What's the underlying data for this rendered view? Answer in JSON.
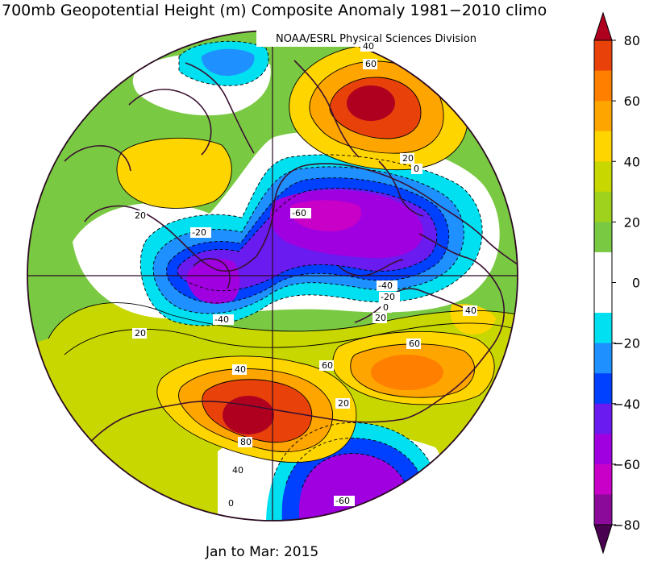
{
  "title": "700mb Geopotential Height (m) Composite Anomaly 1981−2010 climo",
  "credit": "NOAA/ESRL Physical Sciences Division",
  "period": "Jan to Mar: 2015",
  "colorbar": {
    "ticks": [
      "80",
      "60",
      "40",
      "20",
      "0",
      "−20",
      "−40",
      "−60",
      "−80"
    ],
    "bins": [
      {
        "range": "> 80",
        "color": "#b00020"
      },
      {
        "range": "70 to 80",
        "color": "#e8420a"
      },
      {
        "range": "60 to 70",
        "color": "#ff7f00"
      },
      {
        "range": "50 to 60",
        "color": "#ffa500"
      },
      {
        "range": "40 to 50",
        "color": "#ffd500"
      },
      {
        "range": "30 to 40",
        "color": "#c9d700"
      },
      {
        "range": "20 to 30",
        "color": "#9fd21c"
      },
      {
        "range": "10 to 20",
        "color": "#7ac943"
      },
      {
        "range": "0 to 10",
        "color": "#ffffff"
      },
      {
        "range": "-10 to 0",
        "color": "#ffffff"
      },
      {
        "range": "-20 to -10",
        "color": "#00e0f0"
      },
      {
        "range": "-30 to -20",
        "color": "#1e90ff"
      },
      {
        "range": "-40 to -30",
        "color": "#0040ff"
      },
      {
        "range": "-50 to -40",
        "color": "#6a1cf0"
      },
      {
        "range": "-60 to -50",
        "color": "#a000e0"
      },
      {
        "range": "-70 to -60",
        "color": "#c800c8"
      },
      {
        "range": "-80 to -70",
        "color": "#8b0a9a"
      },
      {
        "range": "< -80",
        "color": "#4a0050"
      }
    ]
  },
  "contour_labels": [
    "40",
    "60",
    "20",
    "0",
    "20",
    "-60",
    "-20",
    "-40",
    "-20",
    "-40",
    "0",
    "20",
    "40",
    "20",
    "40",
    "60",
    "60",
    "80",
    "20",
    "40",
    "0",
    "-60"
  ],
  "map": {
    "projection": "polar-stereographic-north",
    "land_outline_color": "#3a1030",
    "centers": [
      {
        "name": "ridge-north-pacific",
        "sign": "positive",
        "max": 80
      },
      {
        "name": "ridge-western-europe",
        "sign": "positive",
        "max": 80
      },
      {
        "name": "ridge-north-america",
        "sign": "positive",
        "max": 60
      },
      {
        "name": "trough-canadian-arctic",
        "sign": "negative",
        "min": -60
      },
      {
        "name": "trough-siberia",
        "sign": "negative",
        "min": -60
      },
      {
        "name": "trough-north-atlantic",
        "sign": "negative",
        "min": -60
      },
      {
        "name": "ridge-asia",
        "sign": "positive",
        "max": 40
      }
    ]
  }
}
